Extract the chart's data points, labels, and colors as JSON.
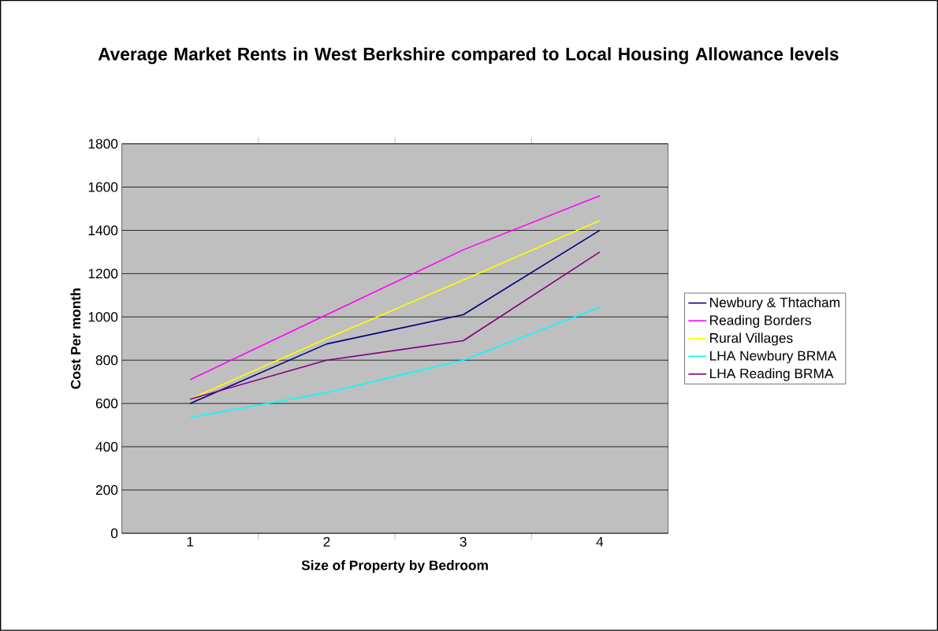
{
  "chart_data": {
    "type": "line",
    "title": "Average Market Rents in West Berkshire compared to Local Housing Allowance levels",
    "xlabel": "Size of Property by Bedroom",
    "ylabel": "Cost Per month",
    "categories": [
      "1",
      "2",
      "3",
      "4"
    ],
    "series": [
      {
        "name": "Newbury & Thtacham",
        "color": "#000080",
        "values": [
          600,
          875,
          1010,
          1400
        ]
      },
      {
        "name": "Reading Borders",
        "color": "#ff00ff",
        "values": [
          710,
          1010,
          1310,
          1560
        ]
      },
      {
        "name": "Rural Villages",
        "color": "#ffff00",
        "values": [
          620,
          900,
          1170,
          1445
        ]
      },
      {
        "name": "LHA Newbury BRMA",
        "color": "#00ffff",
        "values": [
          535,
          650,
          800,
          1045
        ]
      },
      {
        "name": "LHA Reading BRMA",
        "color": "#800080",
        "values": [
          620,
          800,
          890,
          1300
        ]
      }
    ],
    "ylim": [
      0,
      1800
    ],
    "yticks": [
      0,
      200,
      400,
      600,
      800,
      1000,
      1200,
      1400,
      1600,
      1800
    ],
    "grid": "y",
    "legend": "right",
    "marker": "none",
    "line_style": "solid"
  }
}
